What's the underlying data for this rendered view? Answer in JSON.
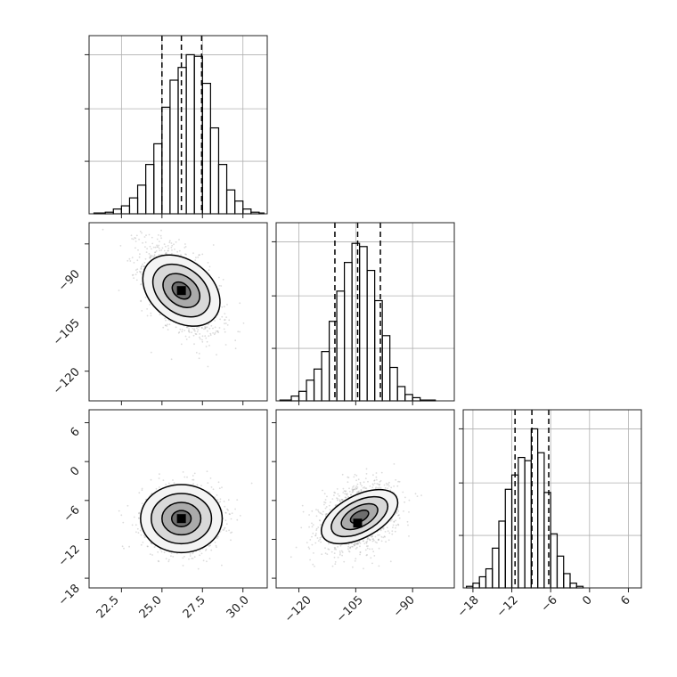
{
  "chart_data": [
    {
      "type": "histogram",
      "panel": "histogram-param-1",
      "xlim": [
        20.5,
        31.5
      ],
      "ylim": [
        0,
        1
      ],
      "grid": true,
      "bins": [
        {
          "from": 20.8,
          "to": 21.5,
          "density": 0.005
        },
        {
          "from": 21.5,
          "to": 22.0,
          "density": 0.01
        },
        {
          "from": 22.0,
          "to": 22.5,
          "density": 0.03
        },
        {
          "from": 22.5,
          "to": 23.0,
          "density": 0.05
        },
        {
          "from": 23.0,
          "to": 23.5,
          "density": 0.1
        },
        {
          "from": 23.5,
          "to": 24.0,
          "density": 0.18
        },
        {
          "from": 24.0,
          "to": 24.5,
          "density": 0.31
        },
        {
          "from": 24.5,
          "to": 25.0,
          "density": 0.44
        },
        {
          "from": 25.0,
          "to": 25.5,
          "density": 0.67
        },
        {
          "from": 25.5,
          "to": 26.0,
          "density": 0.84
        },
        {
          "from": 26.0,
          "to": 26.5,
          "density": 0.92
        },
        {
          "from": 26.5,
          "to": 27.0,
          "density": 1.0
        },
        {
          "from": 27.0,
          "to": 27.5,
          "density": 0.99
        },
        {
          "from": 27.5,
          "to": 28.0,
          "density": 0.82
        },
        {
          "from": 28.0,
          "to": 28.5,
          "density": 0.54
        },
        {
          "from": 28.5,
          "to": 29.0,
          "density": 0.31
        },
        {
          "from": 29.0,
          "to": 29.5,
          "density": 0.15
        },
        {
          "from": 29.5,
          "to": 30.0,
          "density": 0.08
        },
        {
          "from": 30.0,
          "to": 30.5,
          "density": 0.03
        },
        {
          "from": 30.5,
          "to": 31.0,
          "density": 0.01
        },
        {
          "from": 31.0,
          "to": 31.3,
          "density": 0.005
        }
      ],
      "quantile_lines": [
        25.0,
        26.2,
        27.45
      ]
    },
    {
      "type": "scatter",
      "panel": "scatter-param-1-vs-param-2",
      "xlim": [
        20.5,
        31.5
      ],
      "ylim": [
        -127,
        -85
      ],
      "yticks": [
        -90,
        -105,
        -120
      ],
      "point_cloud": {
        "center": [
          26.2,
          -101
        ],
        "spread": [
          1.2,
          5.5
        ],
        "correlation": -0.55
      },
      "density_peak": [
        26.2,
        -101
      ]
    },
    {
      "type": "histogram",
      "panel": "histogram-param-2",
      "xlim": [
        -126,
        -79
      ],
      "ylim": [
        0,
        1
      ],
      "grid": true,
      "bins": [
        {
          "from": -125,
          "to": -122,
          "density": 0.005
        },
        {
          "from": -122,
          "to": -120,
          "density": 0.03
        },
        {
          "from": -120,
          "to": -118,
          "density": 0.06
        },
        {
          "from": -118,
          "to": -116,
          "density": 0.13
        },
        {
          "from": -116,
          "to": -114,
          "density": 0.2
        },
        {
          "from": -114,
          "to": -112,
          "density": 0.31
        },
        {
          "from": -112,
          "to": -110,
          "density": 0.5
        },
        {
          "from": -110,
          "to": -108,
          "density": 0.69
        },
        {
          "from": -108,
          "to": -106,
          "density": 0.87
        },
        {
          "from": -106,
          "to": -104,
          "density": 0.99
        },
        {
          "from": -104,
          "to": -102,
          "density": 0.97
        },
        {
          "from": -102,
          "to": -100,
          "density": 0.82
        },
        {
          "from": -100,
          "to": -98,
          "density": 0.63
        },
        {
          "from": -98,
          "to": -96,
          "density": 0.41
        },
        {
          "from": -96,
          "to": -94,
          "density": 0.21
        },
        {
          "from": -94,
          "to": -92,
          "density": 0.09
        },
        {
          "from": -92,
          "to": -90,
          "density": 0.04
        },
        {
          "from": -90,
          "to": -88,
          "density": 0.02
        },
        {
          "from": -88,
          "to": -84,
          "density": 0.005
        }
      ],
      "quantile_lines": [
        -110.5,
        -104.5,
        -98.5
      ]
    },
    {
      "type": "scatter",
      "panel": "scatter-param-1-vs-param-3",
      "xlim": [
        20.5,
        31.5
      ],
      "ylim": [
        -19.5,
        8
      ],
      "yticks": [
        6,
        0,
        -6,
        -12,
        -18
      ],
      "point_cloud": {
        "center": [
          26.2,
          -8.8
        ],
        "spread": [
          1.2,
          2.5
        ],
        "correlation": 0
      },
      "density_peak": [
        26.2,
        -8.8
      ]
    },
    {
      "type": "scatter",
      "panel": "scatter-param-2-vs-param-3",
      "xlim": [
        -126,
        -79
      ],
      "ylim": [
        -19.5,
        8
      ],
      "point_cloud": {
        "center": [
          -104,
          -8.5
        ],
        "spread": [
          5.0,
          2.5
        ],
        "correlation": 0.3
      },
      "density_peak": [
        -104.5,
        -9.5
      ]
    },
    {
      "type": "histogram",
      "panel": "histogram-param-3",
      "xlim": [
        -19.5,
        8
      ],
      "ylim": [
        0,
        1
      ],
      "grid": true,
      "bins": [
        {
          "from": -19,
          "to": -18,
          "density": 0.01
        },
        {
          "from": -18,
          "to": -17,
          "density": 0.03
        },
        {
          "from": -17,
          "to": -16,
          "density": 0.07
        },
        {
          "from": -16,
          "to": -15,
          "density": 0.12
        },
        {
          "from": -15,
          "to": -14,
          "density": 0.25
        },
        {
          "from": -14,
          "to": -13,
          "density": 0.42
        },
        {
          "from": -13,
          "to": -12,
          "density": 0.62
        },
        {
          "from": -12,
          "to": -11,
          "density": 0.71
        },
        {
          "from": -11,
          "to": -10,
          "density": 0.82
        },
        {
          "from": -10,
          "to": -9,
          "density": 0.8
        },
        {
          "from": -9,
          "to": -8,
          "density": 1.0
        },
        {
          "from": -8,
          "to": -7,
          "density": 0.85
        },
        {
          "from": -7,
          "to": -6,
          "density": 0.6
        },
        {
          "from": -6,
          "to": -5,
          "density": 0.34
        },
        {
          "from": -5,
          "to": -4,
          "density": 0.2
        },
        {
          "from": -4,
          "to": -3,
          "density": 0.09
        },
        {
          "from": -3,
          "to": -2,
          "density": 0.03
        },
        {
          "from": -2,
          "to": -1,
          "density": 0.01
        }
      ],
      "quantile_lines": [
        -11.5,
        -8.9,
        -6.3
      ]
    }
  ],
  "axes": {
    "param1_ticks": [
      {
        "value": 22.5,
        "label": "22.5"
      },
      {
        "value": 25.0,
        "label": "25.0"
      },
      {
        "value": 27.5,
        "label": "27.5"
      },
      {
        "value": 30.0,
        "label": "30.0"
      }
    ],
    "param2_ticks": [
      {
        "value": -120,
        "label": "−120"
      },
      {
        "value": -105,
        "label": "−105"
      },
      {
        "value": -90,
        "label": "−90"
      }
    ],
    "param3_ticks": [
      {
        "value": -18,
        "label": "−18"
      },
      {
        "value": -12,
        "label": "−12"
      },
      {
        "value": -6,
        "label": "−6"
      },
      {
        "value": 0,
        "label": "0"
      },
      {
        "value": 6,
        "label": "6"
      }
    ]
  },
  "colors": {
    "frame": "#222222",
    "grid": "#b0b0b0",
    "histogram_line": "#000000",
    "scatter_point": "#9a9a9a",
    "contour": "#000000"
  }
}
